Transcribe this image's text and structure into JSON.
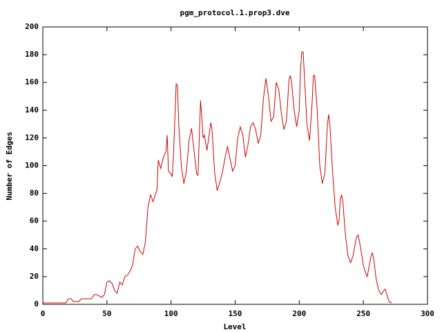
{
  "chart_data": {
    "type": "line",
    "title": "pgm_protocol.1.prop3.dve",
    "xlabel": "Level",
    "ylabel": "Number of Edges",
    "x": [
      0,
      10,
      18,
      20,
      22,
      24,
      28,
      30,
      36,
      38,
      40,
      42,
      44,
      46,
      48,
      50,
      52,
      54,
      56,
      58,
      60,
      62,
      64,
      66,
      68,
      70,
      72,
      74,
      76,
      78,
      80,
      82,
      84,
      86,
      88,
      89,
      90,
      92,
      94,
      96,
      97,
      98,
      100,
      101,
      102,
      104,
      105,
      106,
      108,
      110,
      112,
      114,
      116,
      118,
      120,
      121,
      122,
      123,
      124,
      125,
      126,
      128,
      130,
      131,
      132,
      134,
      136,
      138,
      140,
      142,
      144,
      146,
      148,
      150,
      152,
      154,
      156,
      158,
      160,
      162,
      164,
      166,
      168,
      170,
      172,
      174,
      176,
      178,
      180,
      182,
      184,
      186,
      188,
      190,
      192,
      193,
      194,
      196,
      198,
      200,
      201,
      202,
      203,
      204,
      206,
      208,
      210,
      211,
      212,
      214,
      216,
      218,
      220,
      222,
      223,
      224,
      226,
      228,
      230,
      231,
      232,
      233,
      234,
      236,
      238,
      240,
      242,
      244,
      245,
      246,
      248,
      250,
      252,
      253,
      254,
      256,
      257,
      258,
      260,
      262,
      264,
      266,
      267,
      268,
      270,
      272
    ],
    "series": [
      {
        "color": "#cc0000",
        "values": [
          1,
          1,
          1,
          4,
          4,
          2,
          2,
          4,
          4,
          4,
          7,
          7,
          6,
          5,
          7,
          16,
          17,
          15,
          10,
          8,
          16,
          14,
          20,
          21,
          24,
          28,
          40,
          42,
          38,
          36,
          45,
          70,
          79,
          74,
          80,
          82,
          104,
          98,
          106,
          110,
          122,
          96,
          94,
          92,
          110,
          159,
          158,
          130,
          100,
          87,
          96,
          118,
          127,
          110,
          94,
          93,
          120,
          147,
          135,
          120,
          122,
          111,
          124,
          131,
          126,
          95,
          82,
          88,
          95,
          105,
          114,
          105,
          96,
          100,
          120,
          128,
          122,
          106,
          115,
          128,
          131,
          126,
          116,
          122,
          148,
          163,
          150,
          132,
          135,
          160,
          155,
          138,
          126,
          132,
          162,
          165,
          160,
          140,
          128,
          140,
          170,
          182,
          182,
          165,
          130,
          118,
          145,
          165,
          165,
          140,
          100,
          87,
          95,
          130,
          137,
          128,
          95,
          70,
          57,
          60,
          76,
          79,
          74,
          50,
          35,
          30,
          35,
          46,
          49,
          50,
          40,
          28,
          22,
          20,
          25,
          35,
          37,
          33,
          18,
          10,
          7,
          10,
          11,
          8,
          2,
          1
        ]
      }
    ],
    "xlim": [
      0,
      300
    ],
    "xticks": [
      0,
      50,
      100,
      150,
      200,
      250,
      300
    ],
    "ylim": [
      0,
      200
    ],
    "yticks": [
      0,
      20,
      40,
      60,
      80,
      100,
      120,
      140,
      160,
      180,
      200
    ]
  }
}
